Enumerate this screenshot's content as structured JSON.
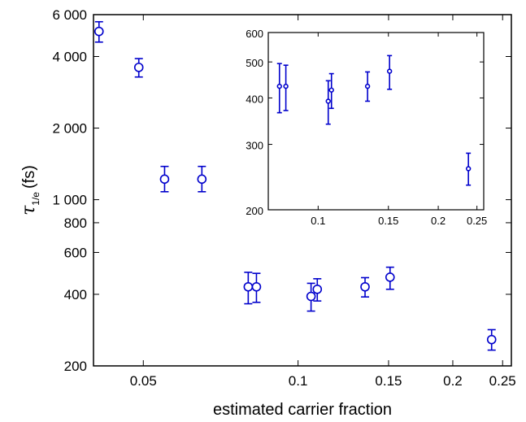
{
  "chart_data": [
    {
      "type": "scatter",
      "xscale": "log",
      "yscale": "log",
      "xlabel": "estimated carrier fraction",
      "ylabel_symbol": "τ",
      "ylabel_subscript": "1/e",
      "ylabel_unit": "(fs)",
      "xlim": [
        0.04,
        0.26
      ],
      "ylim": [
        200,
        6000
      ],
      "x_ticks": [
        0.05,
        0.1,
        0.15,
        0.2,
        0.25
      ],
      "x_tick_labels": [
        "0.05",
        "0.1",
        "0.15",
        "0.2",
        "0.25"
      ],
      "y_ticks": [
        200,
        400,
        600,
        800,
        1000,
        2000,
        4000,
        6000
      ],
      "y_tick_labels": [
        "200",
        "400",
        "600",
        "800",
        "1 000",
        "2 000",
        "4 000",
        "6 000"
      ],
      "color": "#0000cc",
      "marker": "circle",
      "points": [
        {
          "x": 0.041,
          "y": 5100,
          "err_low": 4600,
          "err_high": 5600
        },
        {
          "x": 0.049,
          "y": 3600,
          "err_low": 3280,
          "err_high": 3920
        },
        {
          "x": 0.055,
          "y": 1220,
          "err_low": 1080,
          "err_high": 1380
        },
        {
          "x": 0.065,
          "y": 1220,
          "err_low": 1080,
          "err_high": 1380
        },
        {
          "x": 0.08,
          "y": 430,
          "err_low": 365,
          "err_high": 495
        },
        {
          "x": 0.083,
          "y": 430,
          "err_low": 370,
          "err_high": 490
        },
        {
          "x": 0.106,
          "y": 392,
          "err_low": 340,
          "err_high": 445
        },
        {
          "x": 0.109,
          "y": 420,
          "err_low": 375,
          "err_high": 465
        },
        {
          "x": 0.135,
          "y": 430,
          "err_low": 390,
          "err_high": 470
        },
        {
          "x": 0.151,
          "y": 472,
          "err_low": 420,
          "err_high": 520
        },
        {
          "x": 0.238,
          "y": 258,
          "err_low": 233,
          "err_high": 284
        }
      ]
    },
    {
      "type": "scatter",
      "inset": true,
      "xscale": "log",
      "yscale": "log",
      "xlim": [
        0.075,
        0.26
      ],
      "ylim": [
        200,
        600
      ],
      "x_ticks": [
        0.1,
        0.15,
        0.2,
        0.25
      ],
      "x_tick_labels": [
        "0.1",
        "0.15",
        "0.2",
        "0.25"
      ],
      "y_ticks": [
        200,
        300,
        400,
        500,
        600
      ],
      "y_tick_labels": [
        "200",
        "300",
        "400",
        "500",
        "600"
      ],
      "color": "#0000cc",
      "marker": "dot-circle",
      "points": [
        {
          "x": 0.08,
          "y": 430,
          "err_low": 365,
          "err_high": 495
        },
        {
          "x": 0.083,
          "y": 430,
          "err_low": 370,
          "err_high": 490
        },
        {
          "x": 0.106,
          "y": 392,
          "err_low": 340,
          "err_high": 445
        },
        {
          "x": 0.108,
          "y": 420,
          "err_low": 375,
          "err_high": 465
        },
        {
          "x": 0.133,
          "y": 430,
          "err_low": 392,
          "err_high": 470
        },
        {
          "x": 0.151,
          "y": 472,
          "err_low": 422,
          "err_high": 520
        },
        {
          "x": 0.238,
          "y": 258,
          "err_low": 233,
          "err_high": 284
        }
      ]
    }
  ]
}
